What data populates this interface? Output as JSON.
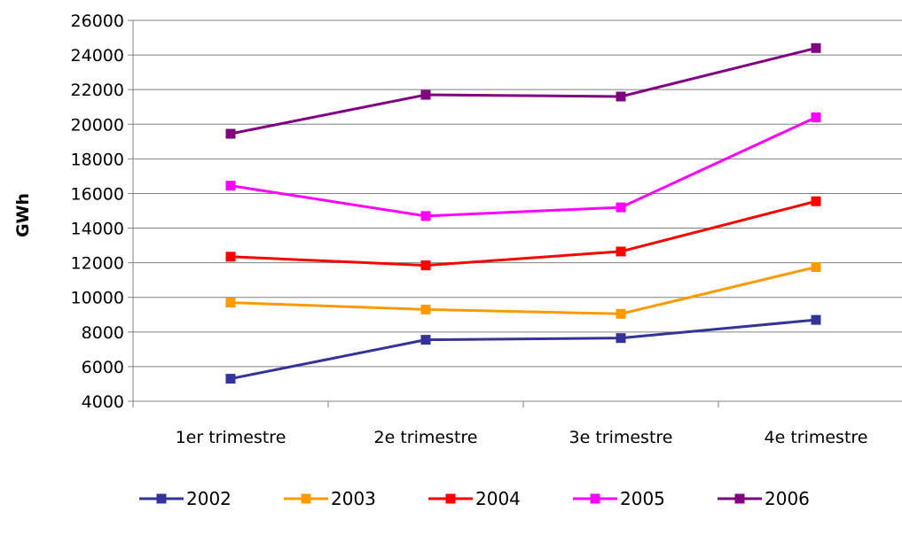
{
  "chart_data": {
    "type": "line",
    "title": "",
    "xlabel": "",
    "ylabel": "GWh",
    "categories": [
      "1er trimestre",
      "2e trimestre",
      "3e trimestre",
      "4e trimestre"
    ],
    "ylim": [
      4000,
      26000
    ],
    "yticks": [
      4000,
      6000,
      8000,
      10000,
      12000,
      14000,
      16000,
      18000,
      20000,
      22000,
      24000,
      26000
    ],
    "grid": true,
    "legend_position": "bottom",
    "series": [
      {
        "name": "2002",
        "color": "#333399",
        "values": [
          5300,
          7550,
          7650,
          8700
        ]
      },
      {
        "name": "2003",
        "color": "#FF9900",
        "values": [
          9700,
          9300,
          9050,
          11750
        ]
      },
      {
        "name": "2004",
        "color": "#FF0000",
        "values": [
          12350,
          11850,
          12650,
          15550
        ]
      },
      {
        "name": "2005",
        "color": "#FF00FF",
        "values": [
          16450,
          14700,
          15200,
          20400
        ]
      },
      {
        "name": "2006",
        "color": "#800080",
        "values": [
          19450,
          21700,
          21600,
          24400
        ]
      }
    ]
  }
}
